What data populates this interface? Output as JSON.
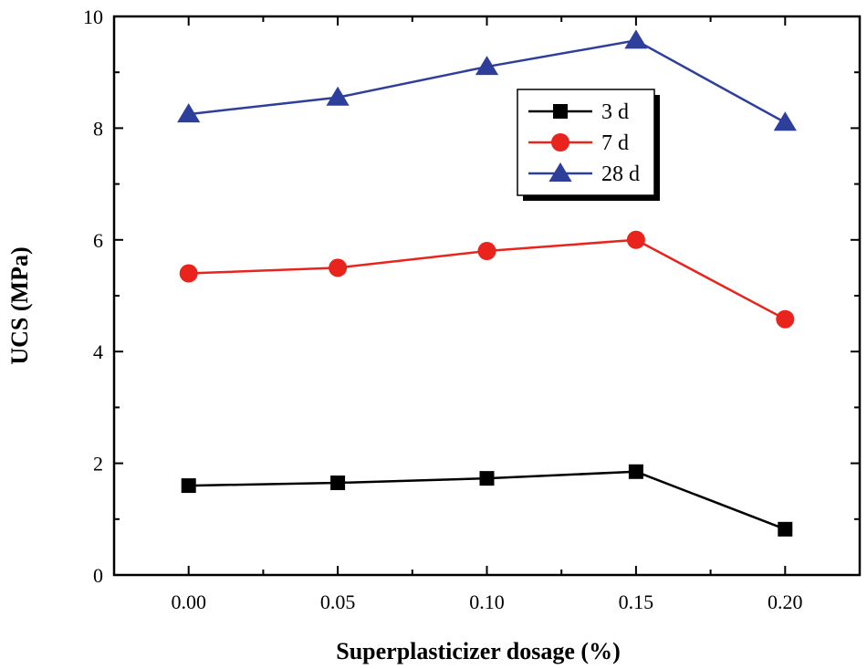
{
  "chart_data": {
    "type": "line",
    "title": "",
    "xlabel": "Superplasticizer dosage (%)",
    "ylabel": "UCS (MPa)",
    "x": [
      0.0,
      0.05,
      0.1,
      0.15,
      0.2
    ],
    "xtick_labels": [
      "0.00",
      "0.05",
      "0.10",
      "0.15",
      "0.20"
    ],
    "xlim": [
      -0.025,
      0.225
    ],
    "ylim": [
      0,
      10
    ],
    "yticks": [
      0,
      2,
      4,
      6,
      8,
      10
    ],
    "ytick_labels": [
      "0",
      "2",
      "4",
      "6",
      "8",
      "10"
    ],
    "grid": false,
    "legend_position": "top-right",
    "series": [
      {
        "name": "3 d",
        "marker": "square",
        "color": "#000000",
        "values": [
          1.6,
          1.65,
          1.73,
          1.85,
          0.82
        ]
      },
      {
        "name": "7 d",
        "marker": "circle",
        "color": "#e8241c",
        "values": [
          5.4,
          5.5,
          5.8,
          6.0,
          4.58
        ]
      },
      {
        "name": "28 d",
        "marker": "triangle",
        "color": "#2e3f9b",
        "values": [
          8.25,
          8.55,
          9.1,
          9.57,
          8.1
        ]
      }
    ]
  }
}
